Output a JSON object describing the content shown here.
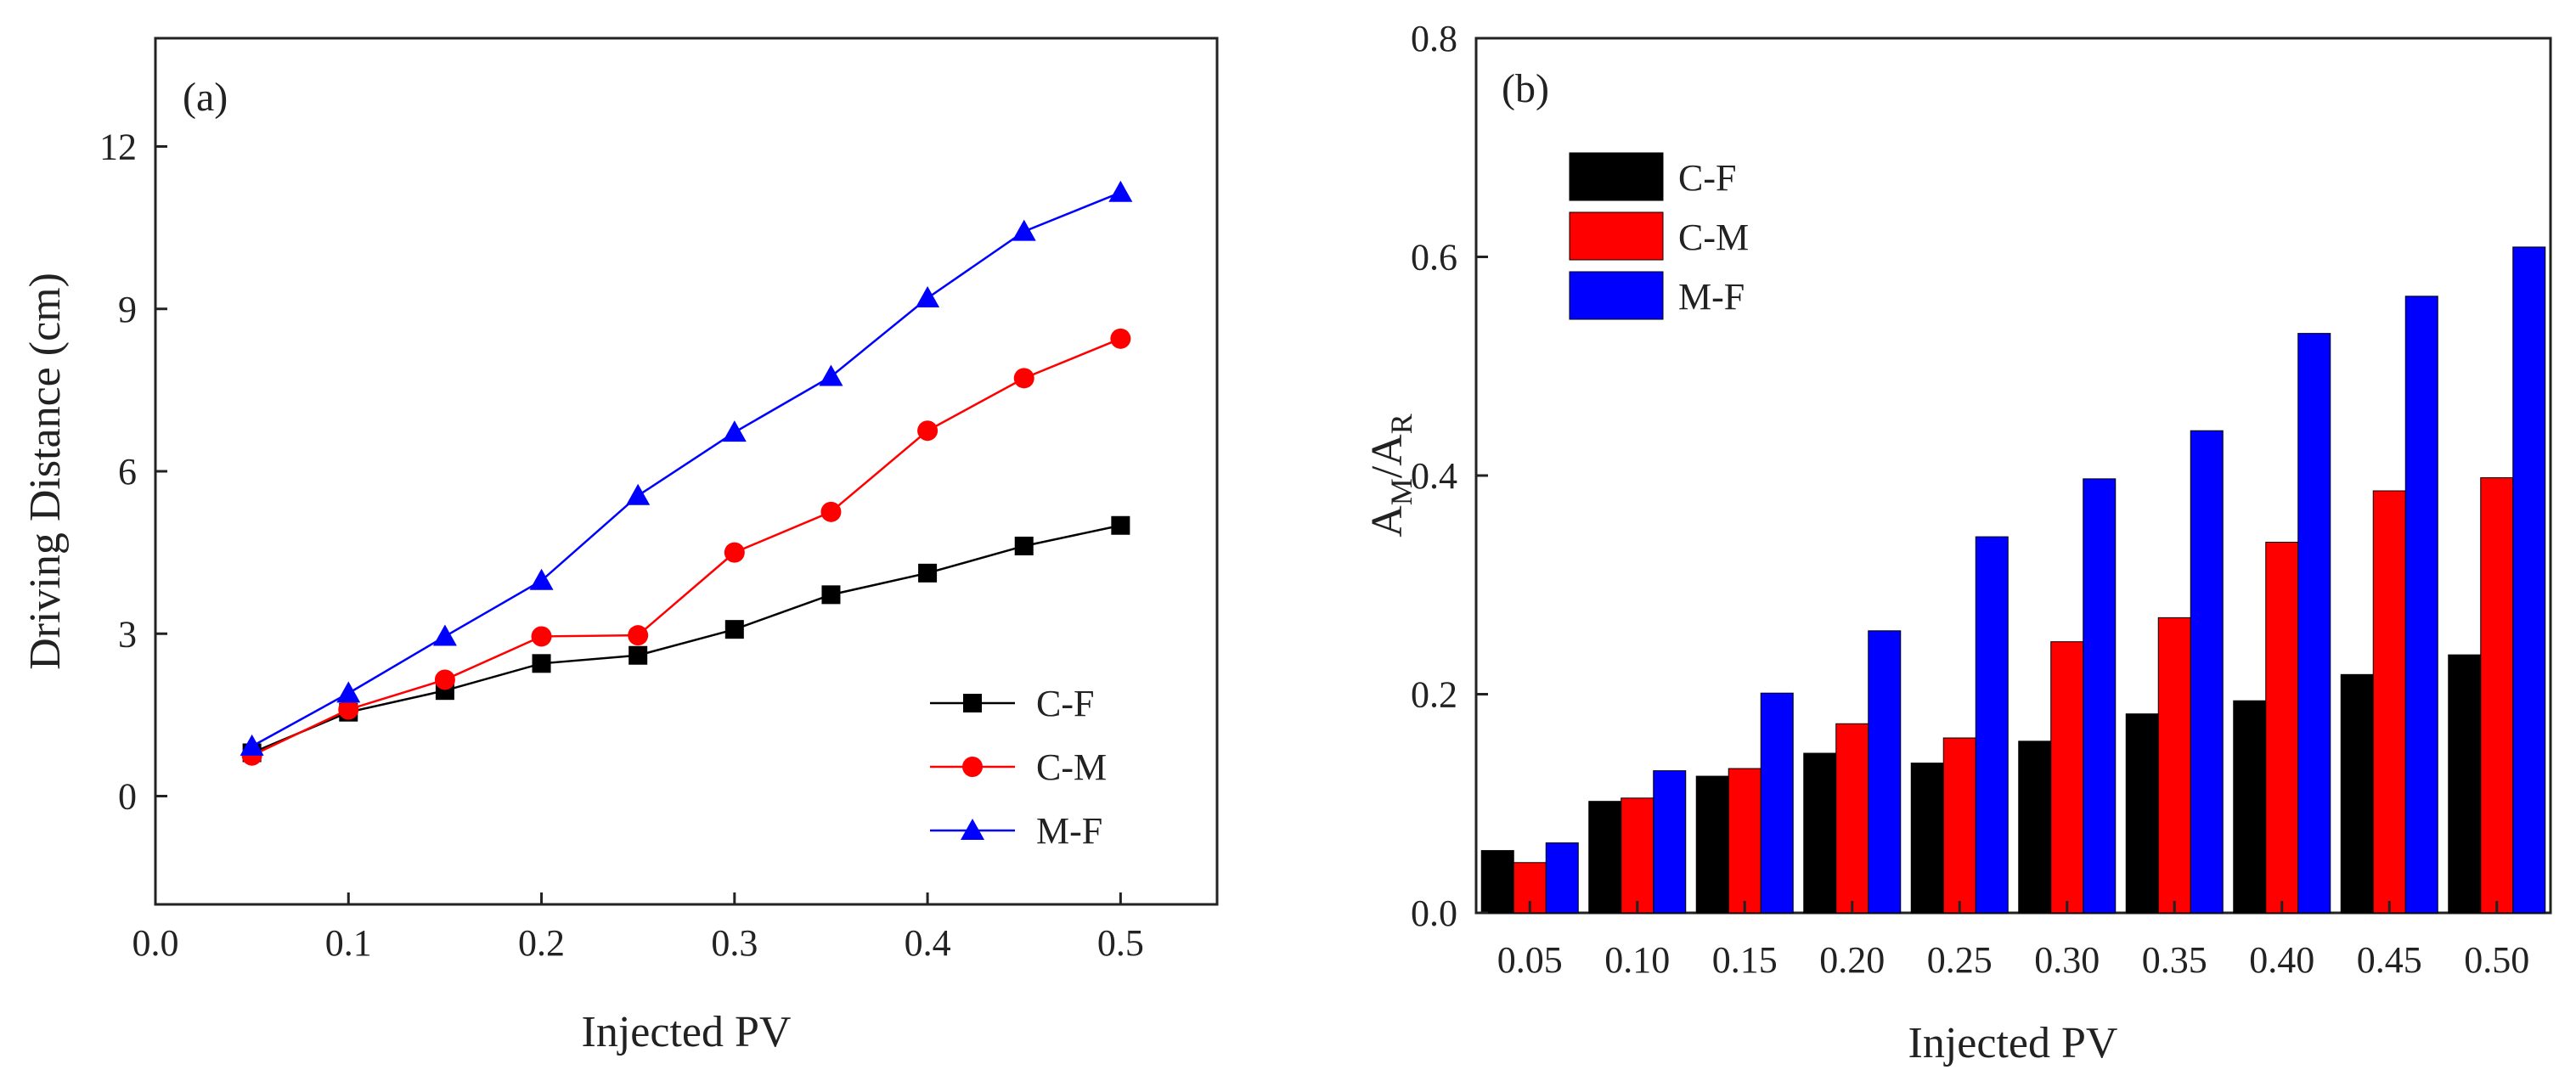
{
  "chart_data": [
    {
      "type": "line",
      "panel_label": "(a)",
      "xlabel": "Injected PV",
      "ylabel": "Driving Distance (cm)",
      "xlim": [
        0.0,
        0.55
      ],
      "ylim": [
        -2,
        14
      ],
      "xticks": [
        0.0,
        0.1,
        0.2,
        0.3,
        0.4,
        0.5
      ],
      "xtick_labels": [
        "0.0",
        "0.1",
        "0.2",
        "0.3",
        "0.4",
        "0.5"
      ],
      "yticks": [
        0,
        3,
        6,
        9,
        12
      ],
      "ytick_labels": [
        "0",
        "3",
        "6",
        "9",
        "12"
      ],
      "x": [
        0.05,
        0.1,
        0.15,
        0.2,
        0.25,
        0.3,
        0.35,
        0.4,
        0.45,
        0.5
      ],
      "legend_position": "lower-right",
      "series": [
        {
          "name": "C-F",
          "color": "#000000",
          "marker": "square",
          "values": [
            0.8,
            1.55,
            1.95,
            2.45,
            2.6,
            3.08,
            3.72,
            4.12,
            4.62,
            5.0
          ]
        },
        {
          "name": "C-M",
          "color": "#ff0000",
          "marker": "circle",
          "values": [
            0.75,
            1.6,
            2.15,
            2.95,
            2.97,
            4.5,
            5.25,
            6.75,
            7.72,
            8.45
          ]
        },
        {
          "name": "M-F",
          "color": "#0000ff",
          "marker": "triangle",
          "values": [
            0.92,
            1.9,
            2.95,
            3.98,
            5.55,
            6.72,
            7.75,
            9.2,
            10.43,
            11.15
          ]
        }
      ]
    },
    {
      "type": "bar",
      "panel_label": "(b)",
      "xlabel": "Injected PV",
      "ylabel": "AM/AR",
      "ylabel_main": "A",
      "ylabel_sub1": "M",
      "ylabel_mid": "/A",
      "ylabel_sub2": "R",
      "ylim": [
        0.0,
        0.8
      ],
      "yticks": [
        0.0,
        0.2,
        0.4,
        0.6,
        0.8
      ],
      "ytick_labels": [
        "0.0",
        "0.2",
        "0.4",
        "0.6",
        "0.8"
      ],
      "categories": [
        "0.05",
        "0.10",
        "0.15",
        "0.20",
        "0.25",
        "0.30",
        "0.35",
        "0.40",
        "0.45",
        "0.50"
      ],
      "legend_position": "top-left",
      "series": [
        {
          "name": "C-F",
          "color": "#000000",
          "values": [
            0.057,
            0.102,
            0.125,
            0.146,
            0.137,
            0.157,
            0.182,
            0.194,
            0.218,
            0.236
          ]
        },
        {
          "name": "C-M",
          "color": "#ff0000",
          "values": [
            0.046,
            0.105,
            0.132,
            0.173,
            0.16,
            0.248,
            0.27,
            0.339,
            0.386,
            0.398
          ]
        },
        {
          "name": "M-F",
          "color": "#0000ff",
          "values": [
            0.064,
            0.13,
            0.201,
            0.258,
            0.344,
            0.397,
            0.441,
            0.53,
            0.564,
            0.609
          ]
        }
      ]
    }
  ]
}
